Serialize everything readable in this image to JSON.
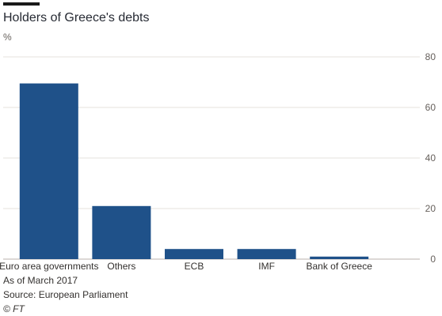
{
  "chart_data": {
    "type": "bar",
    "title": "Holders of Greece's debts",
    "ylabel": "%",
    "categories": [
      "Euro area governments",
      "Others",
      "ECB",
      "IMF",
      "Bank of Greece"
    ],
    "values": [
      69.5,
      21,
      4,
      4,
      1
    ],
    "ylim": [
      0,
      80
    ],
    "yticks": [
      0,
      20,
      40,
      60,
      80
    ],
    "grid": true,
    "bar_color": "#1f5189"
  },
  "footer": {
    "note": "As of March 2017",
    "source": "Source: European Parliament",
    "copyright": "© FT"
  }
}
